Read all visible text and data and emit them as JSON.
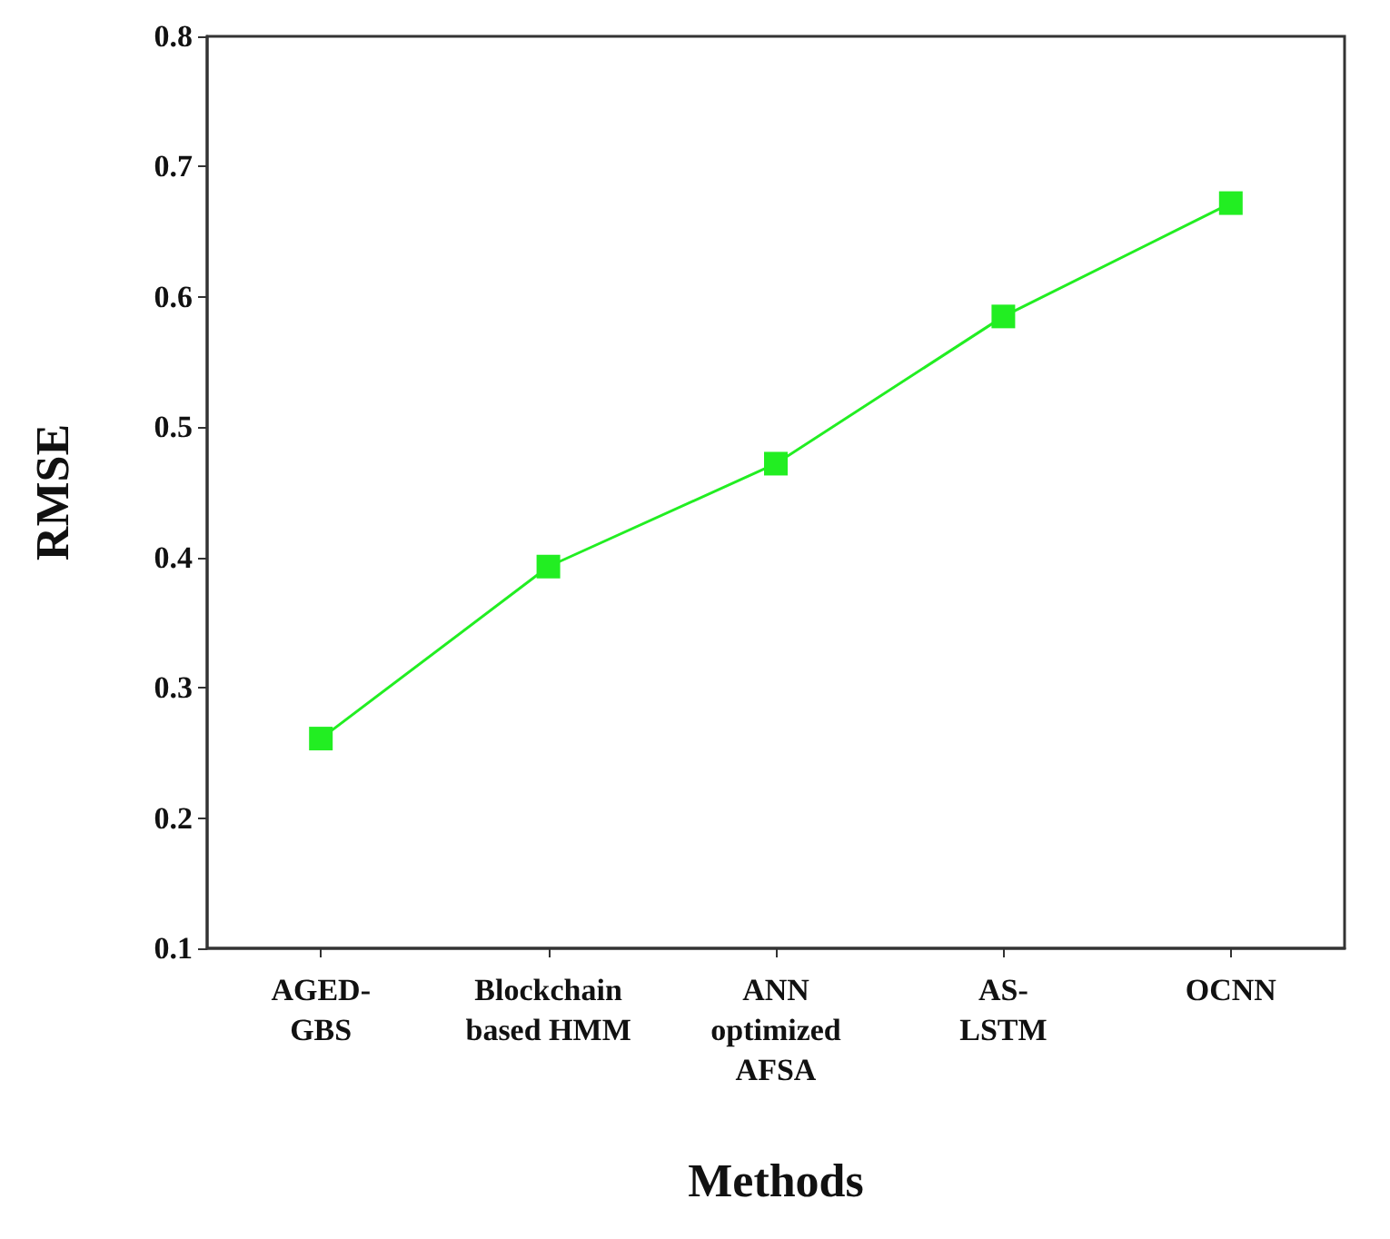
{
  "chart_data": {
    "type": "line",
    "xlabel": "Methods",
    "ylabel": "RMSE",
    "categories": [
      "AGED-GBS",
      "Blockchain based HMM",
      "ANN optimized AFSA",
      "AS-LSTM",
      "OCNN"
    ],
    "series": [
      {
        "color": "#22ee22",
        "values": [
          0.261,
          0.393,
          0.472,
          0.585,
          0.672
        ]
      }
    ],
    "ylim": [
      0.1,
      0.8
    ],
    "yticks": [
      0.1,
      0.2,
      0.3,
      0.4,
      0.5,
      0.6,
      0.7,
      0.8
    ],
    "grid": false,
    "marker": "square",
    "line_style": "solid"
  }
}
